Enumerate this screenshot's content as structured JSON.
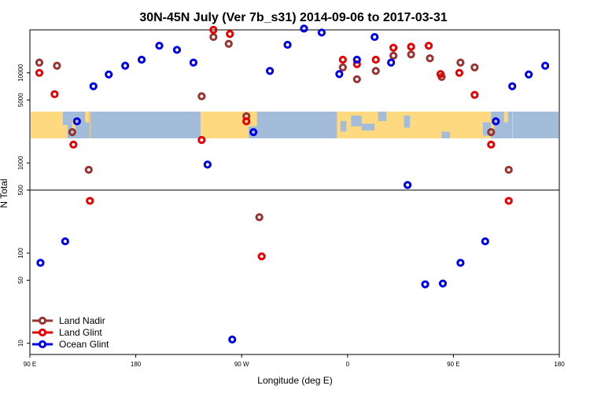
{
  "chart_data": {
    "type": "scatter",
    "title": "30N-45N July (Ver 7b_s31)   2014-09-06 to 2017-03-31",
    "xlabel": "Longitude (deg E)",
    "ylabel": "N Total",
    "x_scale": "longitude-wrapped",
    "x_start_deg_e": 90,
    "x_span_deg": 450,
    "y_scale": "log",
    "ylim": [
      7.5,
      30000
    ],
    "x_ticks": [
      {
        "lon": 90,
        "label": "90 E"
      },
      {
        "lon": 180,
        "label": "180"
      },
      {
        "lon": 270,
        "label": "90 W"
      },
      {
        "lon": 360,
        "label": "0"
      },
      {
        "lon": 450,
        "label": "90 E"
      },
      {
        "lon": 540,
        "label": "180"
      }
    ],
    "y_ticks": [
      {
        "value": 10,
        "label": "10"
      },
      {
        "value": 50,
        "label": "50"
      },
      {
        "value": 100,
        "label": "100"
      },
      {
        "value": 500,
        "label": "500"
      },
      {
        "value": 1000,
        "label": "1000"
      },
      {
        "value": 5000,
        "label": "5000"
      },
      {
        "value": 10000,
        "label": "10000"
      }
    ],
    "reference_line_y": 500,
    "latitude_band": {
      "lat_min": 30,
      "lat_max": 45,
      "ocean_color": "#a3bcd9",
      "land_color": "#ffd980"
    },
    "legend": {
      "placement": "bottom-left"
    },
    "series": [
      {
        "name": "Land Nadir",
        "color": "#993333",
        "points": [
          {
            "lon": 98,
            "value": 13000
          },
          {
            "lon": 113,
            "value": 12000
          },
          {
            "lon": 126,
            "value": 2200
          },
          {
            "lon": 140,
            "value": 840
          },
          {
            "lon": 236,
            "value": 5500
          },
          {
            "lon": 246,
            "value": 25000
          },
          {
            "lon": 259,
            "value": 21000
          },
          {
            "lon": 274,
            "value": 3300
          },
          {
            "lon": 285,
            "value": 250
          },
          {
            "lon": 356,
            "value": 11500
          },
          {
            "lon": 368,
            "value": 8500
          },
          {
            "lon": 384,
            "value": 10500
          },
          {
            "lon": 399,
            "value": 15500
          },
          {
            "lon": 414,
            "value": 16000
          },
          {
            "lon": 430,
            "value": 14500
          },
          {
            "lon": 440,
            "value": 9000
          },
          {
            "lon": 456,
            "value": 13000
          },
          {
            "lon": 468,
            "value": 11500
          },
          {
            "lon": 482,
            "value": 2200
          },
          {
            "lon": 497,
            "value": 840
          }
        ]
      },
      {
        "name": "Land Glint",
        "color": "#e60000",
        "points": [
          {
            "lon": 98,
            "value": 10000
          },
          {
            "lon": 111,
            "value": 5800
          },
          {
            "lon": 127,
            "value": 1600
          },
          {
            "lon": 141,
            "value": 380
          },
          {
            "lon": 236,
            "value": 1800
          },
          {
            "lon": 246,
            "value": 30000
          },
          {
            "lon": 260,
            "value": 27000
          },
          {
            "lon": 274,
            "value": 2900
          },
          {
            "lon": 287,
            "value": 92
          },
          {
            "lon": 356,
            "value": 14000
          },
          {
            "lon": 368,
            "value": 12500
          },
          {
            "lon": 384,
            "value": 14000
          },
          {
            "lon": 399,
            "value": 19000
          },
          {
            "lon": 414,
            "value": 19500
          },
          {
            "lon": 429,
            "value": 20000
          },
          {
            "lon": 439,
            "value": 9700
          },
          {
            "lon": 455,
            "value": 10000
          },
          {
            "lon": 468,
            "value": 5700
          },
          {
            "lon": 482,
            "value": 1600
          },
          {
            "lon": 497,
            "value": 380
          }
        ]
      },
      {
        "name": "Ocean Glint",
        "color": "#0000e6",
        "points": [
          {
            "lon": 99,
            "value": 78
          },
          {
            "lon": 120,
            "value": 135
          },
          {
            "lon": 130,
            "value": 2900
          },
          {
            "lon": 144,
            "value": 7100
          },
          {
            "lon": 157,
            "value": 9600
          },
          {
            "lon": 171,
            "value": 12000
          },
          {
            "lon": 185,
            "value": 14000
          },
          {
            "lon": 200,
            "value": 20000
          },
          {
            "lon": 215,
            "value": 18000
          },
          {
            "lon": 229,
            "value": 13000
          },
          {
            "lon": 241,
            "value": 960
          },
          {
            "lon": 262,
            "value": 11
          },
          {
            "lon": 280,
            "value": 2200
          },
          {
            "lon": 294,
            "value": 10500
          },
          {
            "lon": 309,
            "value": 20500
          },
          {
            "lon": 323,
            "value": 31000
          },
          {
            "lon": 338,
            "value": 28000
          },
          {
            "lon": 353,
            "value": 9700
          },
          {
            "lon": 368,
            "value": 14000
          },
          {
            "lon": 383,
            "value": 25000
          },
          {
            "lon": 397,
            "value": 13000
          },
          {
            "lon": 411,
            "value": 570
          },
          {
            "lon": 426,
            "value": 45
          },
          {
            "lon": 441,
            "value": 46
          },
          {
            "lon": 456,
            "value": 78
          },
          {
            "lon": 477,
            "value": 135
          },
          {
            "lon": 486,
            "value": 2900
          },
          {
            "lon": 500,
            "value": 7100
          },
          {
            "lon": 514,
            "value": 9600
          },
          {
            "lon": 528,
            "value": 12000
          }
        ]
      }
    ]
  }
}
